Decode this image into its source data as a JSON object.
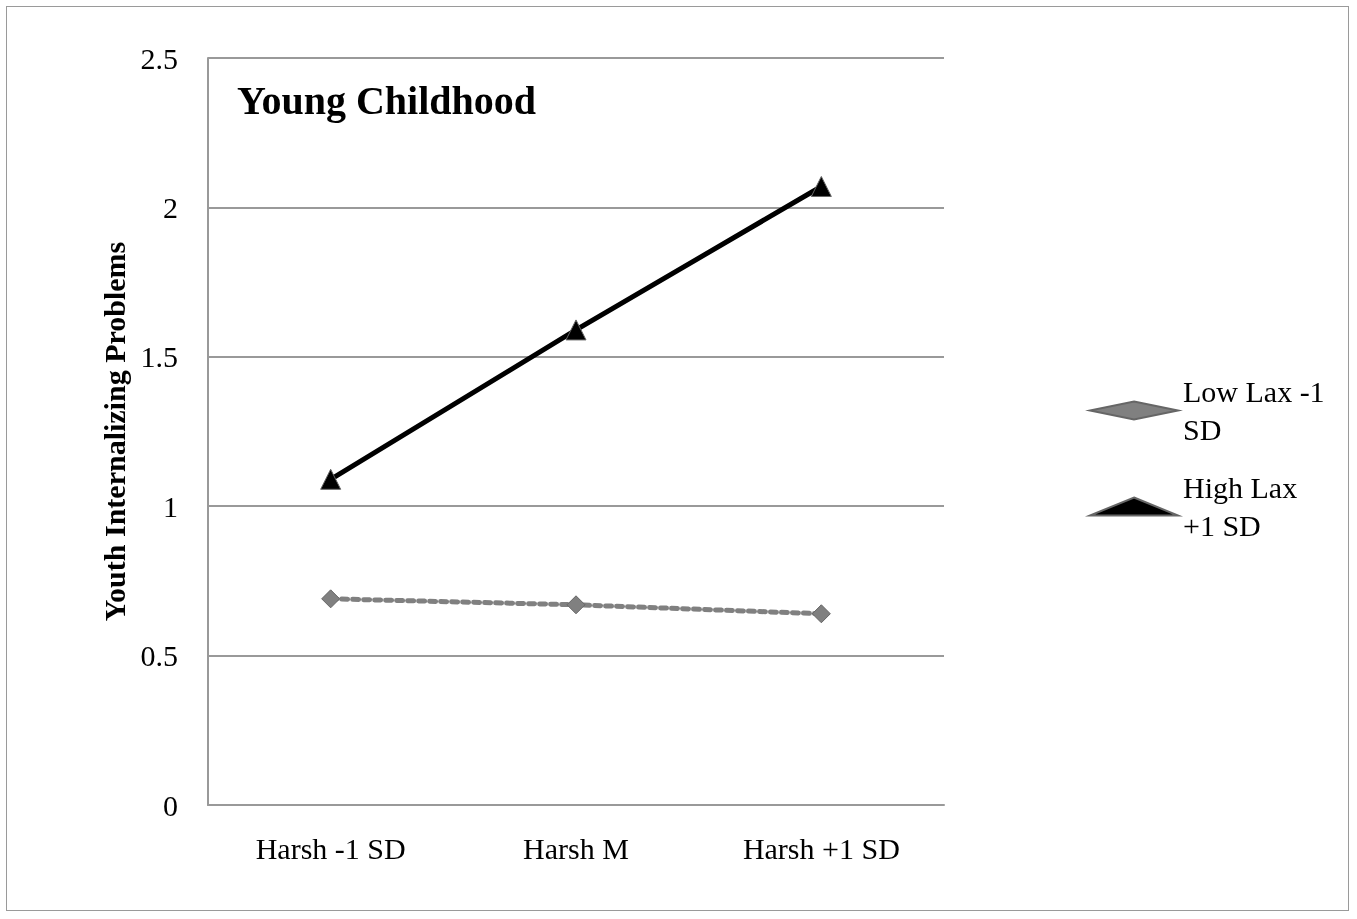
{
  "chart_data": {
    "type": "line",
    "title": "Young Childhood",
    "ylabel": "Youth Internalizing Problems",
    "categories": [
      "Harsh -1 SD",
      "Harsh M",
      "Harsh +1 SD"
    ],
    "series": [
      {
        "name": "Low Lax -1 SD",
        "color": "#808080",
        "values": [
          0.69,
          0.67,
          0.64
        ],
        "marker": "diamond",
        "line_style": "dashed"
      },
      {
        "name": "High Lax +1 SD",
        "color": "#000000",
        "values": [
          1.09,
          1.59,
          2.07
        ],
        "marker": "triangle",
        "line_style": "solid"
      }
    ],
    "ylim": [
      0,
      2.5
    ],
    "yticks": [
      0,
      0.5,
      1,
      1.5,
      2,
      2.5
    ],
    "grid": "y",
    "legend": "right"
  }
}
